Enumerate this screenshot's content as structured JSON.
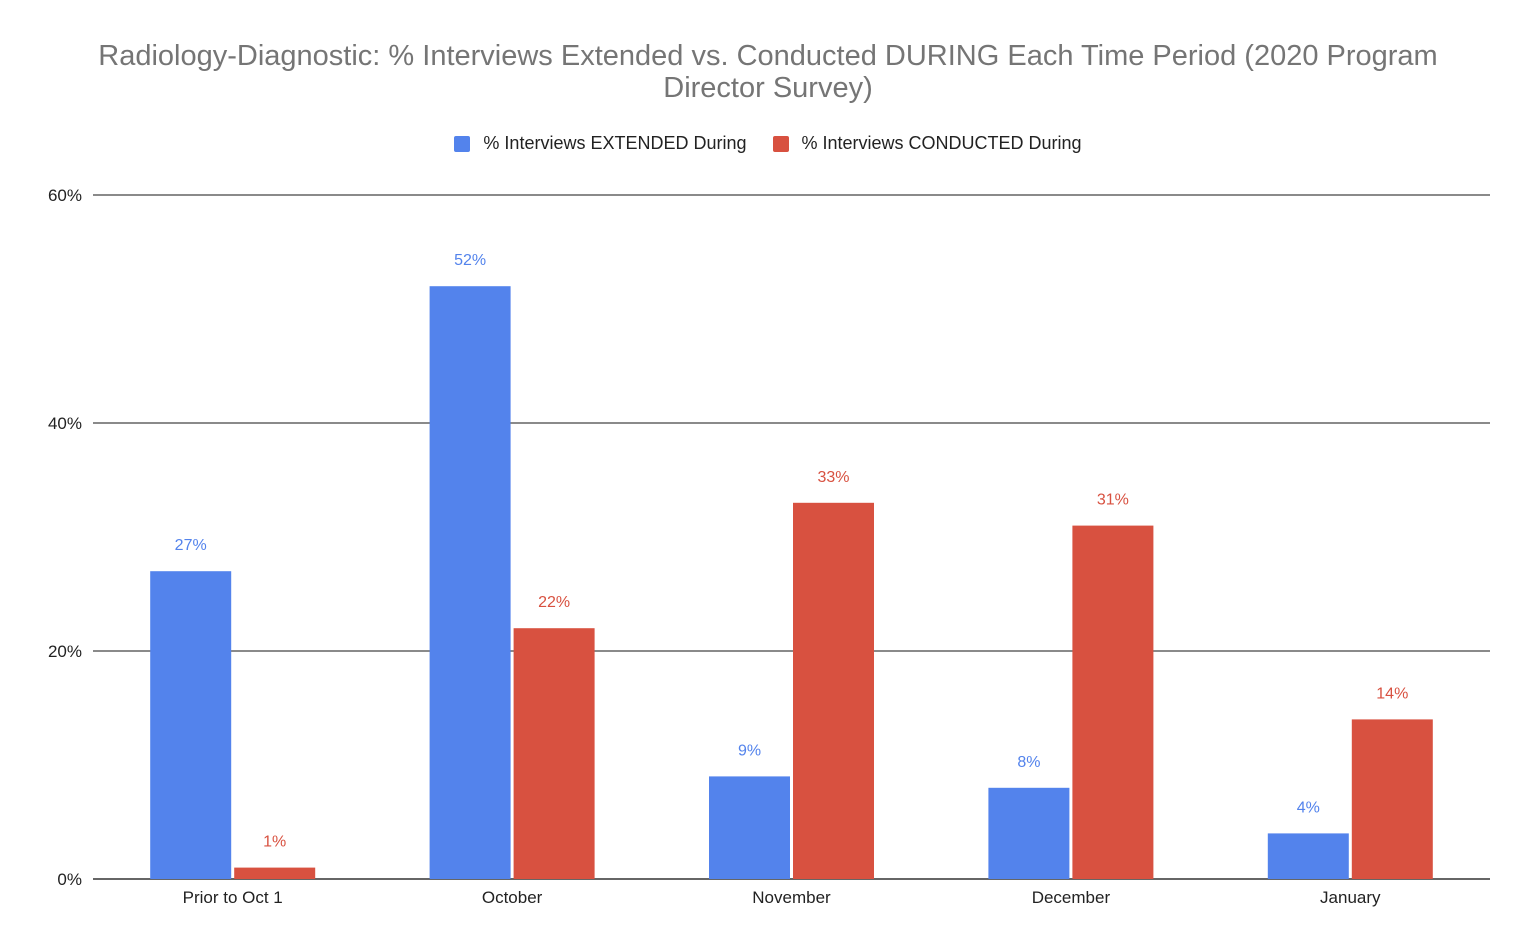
{
  "chart_data": {
    "type": "bar",
    "title": "Radiology-Diagnostic: % Interviews Extended vs. Conducted DURING Each Time Period (2020 Program Director Survey)",
    "title_lines": [
      "Radiology-Diagnostic: % Interviews Extended vs. Conducted DURING Each Time Period (2020 Program",
      "Director Survey)"
    ],
    "xlabel": "",
    "ylabel": "",
    "categories": [
      "Prior to Oct 1",
      "October",
      "November",
      "December",
      "January"
    ],
    "series": [
      {
        "name": "% Interviews EXTENDED During",
        "color": "#5383ec",
        "label_color": "#5383ec",
        "values": [
          27,
          52,
          9,
          8,
          4
        ],
        "labels": [
          "27%",
          "52%",
          "9%",
          "8%",
          "4%"
        ]
      },
      {
        "name": "% Interviews CONDUCTED During",
        "color": "#d85140",
        "label_color": "#d85140",
        "values": [
          1,
          22,
          33,
          31,
          14
        ],
        "labels": [
          "1%",
          "22%",
          "33%",
          "31%",
          "14%"
        ]
      }
    ],
    "ylim": [
      0,
      60
    ],
    "yticks": [
      0,
      20,
      40,
      60
    ],
    "ytick_labels": [
      "0%",
      "20%",
      "40%",
      "60%"
    ],
    "grid": true,
    "legend_position": "top"
  }
}
